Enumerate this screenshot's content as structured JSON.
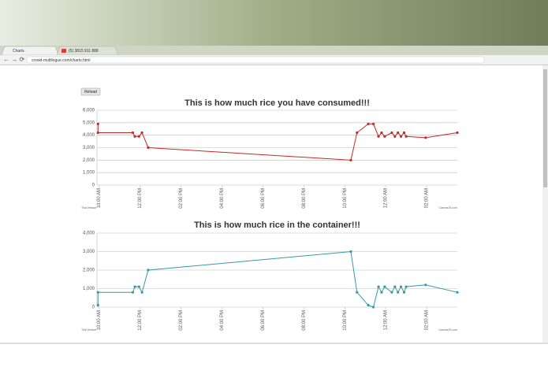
{
  "browser": {
    "tabs": [
      "Charts",
      "(5) 3815 911 888"
    ],
    "url": "crowd-multilogue.com/charts.html"
  },
  "reload": "Reload",
  "chart_data": [
    {
      "type": "line",
      "title": "This is how much rice you have consumed!!!",
      "color": "#c62828",
      "grid": true,
      "x": [
        -0.05,
        -0.05,
        1.65,
        1.75,
        1.95,
        2.1,
        2.4,
        12.3,
        12.6,
        13.15,
        13.4,
        13.65,
        13.8,
        13.95,
        14.3,
        14.45,
        14.6,
        14.75,
        14.9,
        15.0,
        15.95,
        17.5
      ],
      "values": [
        4900,
        4200,
        4200,
        3900,
        3900,
        4200,
        3000,
        2000,
        4200,
        4900,
        4900,
        3900,
        4200,
        3900,
        4200,
        3900,
        4200,
        3900,
        4200,
        3900,
        3800,
        4200
      ],
      "xlim": [
        -0.1,
        17.5
      ],
      "xticks": [
        {
          "value": 0,
          "label": "10:00 AM"
        },
        {
          "value": 2,
          "label": "12:00 PM"
        },
        {
          "value": 4,
          "label": "02:00 PM"
        },
        {
          "value": 6,
          "label": "04:00 PM"
        },
        {
          "value": 8,
          "label": "06:00 PM"
        },
        {
          "value": 10,
          "label": "08:00 PM"
        },
        {
          "value": 12,
          "label": "10:00 PM"
        },
        {
          "value": 14,
          "label": "12:00 AM"
        },
        {
          "value": 16,
          "label": "02:00 AM"
        }
      ],
      "ylim": [
        0,
        6000
      ],
      "yticks": [
        0,
        {
          "value": 1000,
          "label": "1,000"
        },
        {
          "value": 2000,
          "label": "2,000"
        },
        {
          "value": 3000,
          "label": "3,000"
        },
        {
          "value": 4000,
          "label": "4,000"
        },
        {
          "value": 5000,
          "label": "5,000"
        },
        {
          "value": 6000,
          "label": "6,000"
        }
      ],
      "annotations": [
        "Trial Version",
        "CanvasJS.com"
      ]
    },
    {
      "type": "line",
      "title": "This is how much rice in the container!!!",
      "color": "#3a98a4",
      "grid": true,
      "x": [
        -0.05,
        -0.05,
        1.65,
        1.75,
        1.95,
        2.1,
        2.4,
        12.3,
        12.6,
        13.15,
        13.4,
        13.65,
        13.8,
        13.95,
        14.3,
        14.45,
        14.6,
        14.75,
        14.9,
        15.0,
        15.95,
        17.5
      ],
      "values": [
        100,
        800,
        800,
        1100,
        1100,
        800,
        2000,
        3000,
        800,
        100,
        0,
        1100,
        800,
        1100,
        800,
        1100,
        800,
        1100,
        800,
        1100,
        1200,
        800
      ],
      "xlim": [
        -0.1,
        17.5
      ],
      "xticks": [
        {
          "value": 0,
          "label": "10:00 AM"
        },
        {
          "value": 2,
          "label": "12:00 PM"
        },
        {
          "value": 4,
          "label": "02:00 PM"
        },
        {
          "value": 6,
          "label": "04:00 PM"
        },
        {
          "value": 8,
          "label": "06:00 PM"
        },
        {
          "value": 10,
          "label": "08:00 PM"
        },
        {
          "value": 12,
          "label": "10:00 PM"
        },
        {
          "value": 14,
          "label": "12:00 AM"
        },
        {
          "value": 16,
          "label": "02:00 AM"
        }
      ],
      "ylim": [
        0,
        4000
      ],
      "yticks": [
        0,
        {
          "value": 1000,
          "label": "1,000"
        },
        {
          "value": 2000,
          "label": "2,000"
        },
        {
          "value": 3000,
          "label": "3,000"
        },
        {
          "value": 4000,
          "label": "4,000"
        }
      ],
      "annotations": [
        "Trial Version",
        "CanvasJS.com"
      ]
    }
  ]
}
